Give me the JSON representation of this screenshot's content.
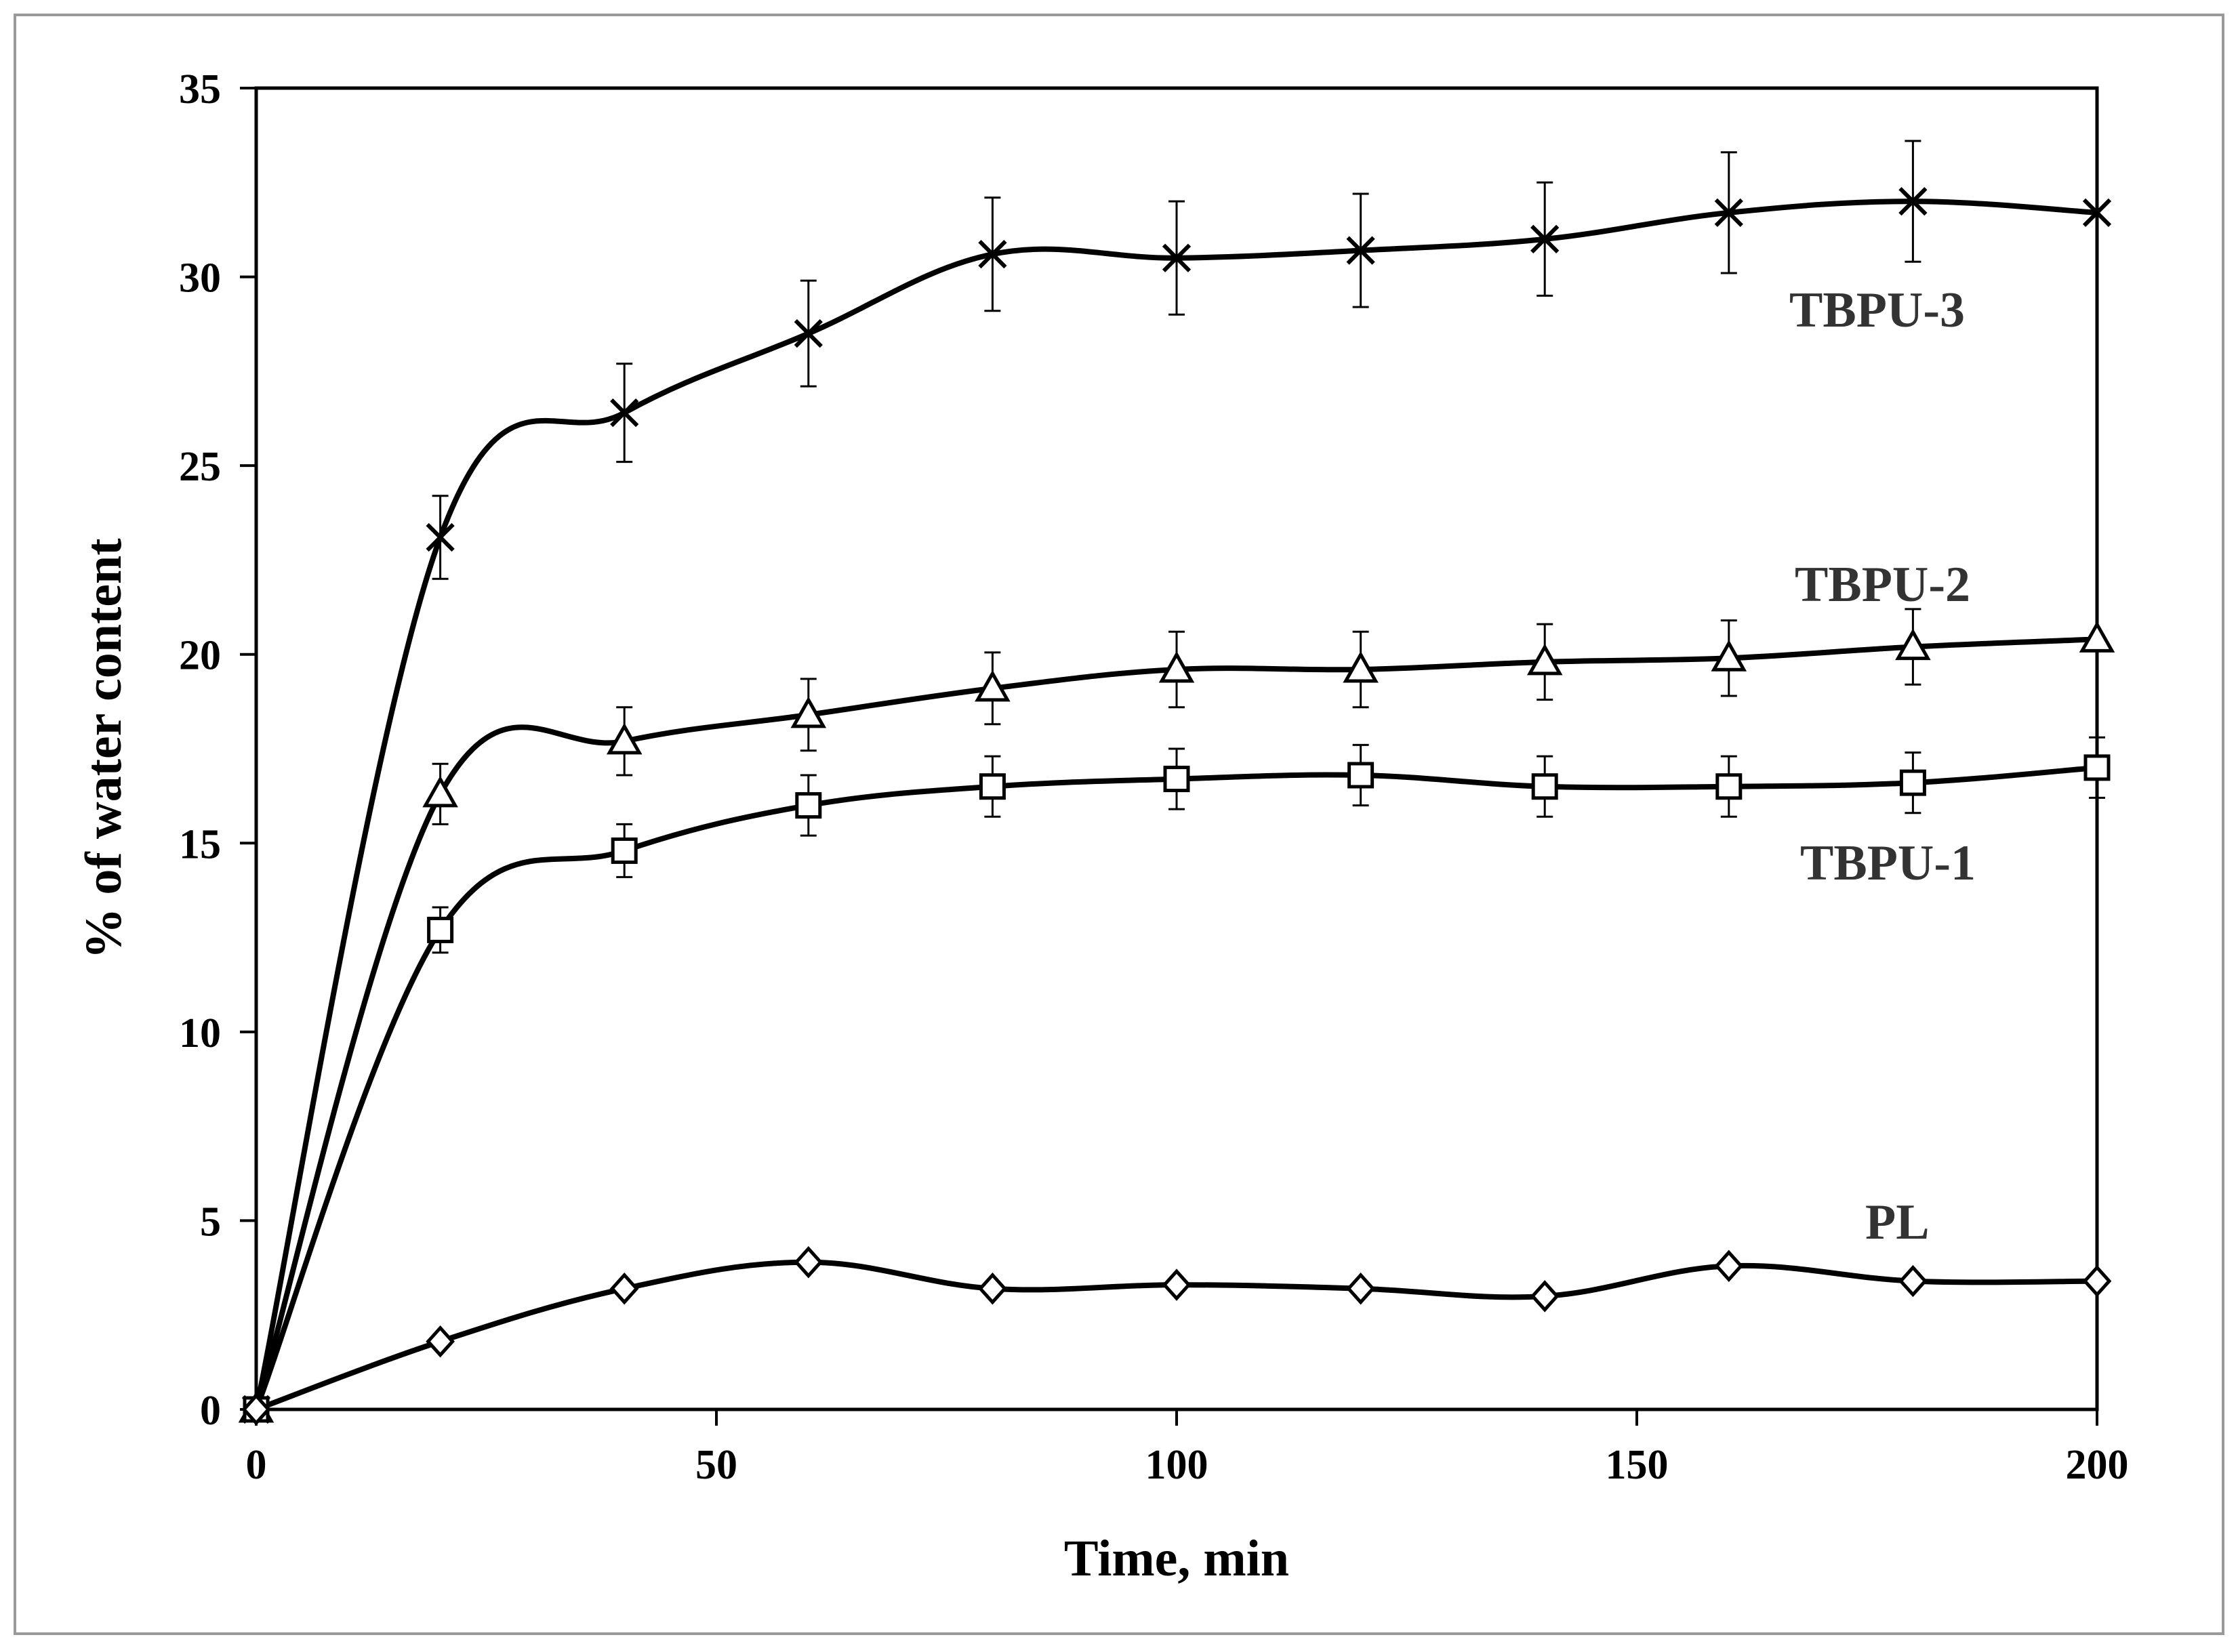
{
  "chart_data": {
    "type": "line",
    "title": "",
    "xlabel": "Time, min",
    "ylabel": "% of water content",
    "xlim": [
      0,
      200
    ],
    "ylim": [
      0,
      35
    ],
    "xticks": [
      0,
      50,
      100,
      150,
      200
    ],
    "yticks": [
      0,
      5,
      10,
      15,
      20,
      25,
      30,
      35
    ],
    "x": [
      0,
      20,
      40,
      60,
      80,
      100,
      120,
      140,
      160,
      180,
      200
    ],
    "grid": false,
    "series": [
      {
        "name": "TBPU-3",
        "marker": "x",
        "values": [
          0,
          23.1,
          26.4,
          28.5,
          30.6,
          30.5,
          30.7,
          31.0,
          31.7,
          32.0,
          31.7
        ],
        "errors": [
          0,
          1.1,
          1.3,
          1.4,
          1.5,
          1.5,
          1.5,
          1.5,
          1.6,
          1.6,
          0
        ]
      },
      {
        "name": "TBPU-2",
        "marker": "triangle",
        "values": [
          0,
          16.3,
          17.7,
          18.4,
          19.1,
          19.6,
          19.6,
          19.8,
          19.9,
          20.2,
          20.4
        ],
        "errors": [
          0,
          0.8,
          0.9,
          0.95,
          0.95,
          1.0,
          1.0,
          1.0,
          1.0,
          1.0,
          0
        ]
      },
      {
        "name": "TBPU-1",
        "marker": "square",
        "values": [
          0,
          12.7,
          14.8,
          16.0,
          16.5,
          16.7,
          16.8,
          16.5,
          16.5,
          16.6,
          17.0
        ],
        "errors": [
          0,
          0.6,
          0.7,
          0.8,
          0.8,
          0.8,
          0.8,
          0.8,
          0.8,
          0.8,
          0.8
        ]
      },
      {
        "name": "PL",
        "marker": "diamond",
        "values": [
          0,
          1.8,
          3.2,
          3.9,
          3.2,
          3.3,
          3.2,
          3.0,
          3.8,
          3.4,
          3.4
        ],
        "errors": [
          0,
          0,
          0,
          0,
          0,
          0,
          0,
          0,
          0,
          0,
          0
        ]
      }
    ]
  }
}
